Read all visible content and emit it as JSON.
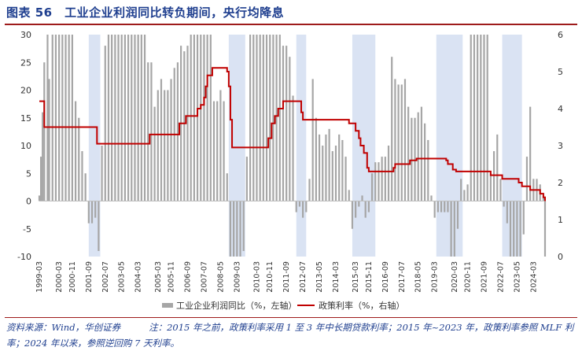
{
  "figure": {
    "title": "图表 56　工业企业利润同比转负期间，央行均降息",
    "source": "资料来源：Wind，华创证券",
    "note": "注：2015 年之前，政策利率采用 1 至 3 年中长期贷款利率；2015 年~2023 年，政策利率参照 MLF 利率；2024 年以来，参照逆回购 7 天利率。"
  },
  "colors": {
    "bar": "#a6a6a6",
    "line": "#c00000",
    "shade": "#dae3f3",
    "title": "#1f3f8f",
    "rule": "#9e1b1b"
  },
  "chart_data": {
    "type": "bar+line",
    "x_tick_labels": [
      "1999-03",
      "2000-03",
      "2000-11",
      "2001-09",
      "2002-07",
      "2003-05",
      "2004-03",
      "2005-03",
      "2005-11",
      "2006-09",
      "2007-07",
      "2008-05",
      "2009-03",
      "2010-03",
      "2010-11",
      "2011-09",
      "2012-07",
      "2013-05",
      "2014-03",
      "2015-03",
      "2015-11",
      "2016-09",
      "2017-07",
      "2018-05",
      "2019-03",
      "2020-03",
      "2020-11",
      "2021-09",
      "2022-07",
      "2023-05",
      "2024-03"
    ],
    "y_left": {
      "range": [
        -10,
        30
      ],
      "ticks": [
        -10,
        -5,
        0,
        5,
        10,
        15,
        20,
        25,
        30
      ]
    },
    "y_right": {
      "range": [
        0,
        6
      ],
      "ticks": [
        0,
        1,
        2,
        3,
        4,
        5,
        6
      ]
    },
    "shaded_periods": [
      {
        "start": "2001-09",
        "end": "2002-04"
      },
      {
        "start": "2008-10",
        "end": "2009-08"
      },
      {
        "start": "2012-03",
        "end": "2012-09"
      },
      {
        "start": "2015-01",
        "end": "2016-03"
      },
      {
        "start": "2019-04",
        "end": "2020-08"
      },
      {
        "start": "2022-08",
        "end": "2023-08"
      }
    ],
    "series": [
      {
        "name": "工业企业利润同比（%，左轴）",
        "type": "bar",
        "axis": "left",
        "points": [
          [
            "1999-03",
            1
          ],
          [
            "1999-04",
            8
          ],
          [
            "1999-05",
            16
          ],
          [
            "1999-06",
            25
          ],
          [
            "1999-08",
            30
          ],
          [
            "1999-09",
            22
          ],
          [
            "1999-11",
            30
          ],
          [
            "2000-01",
            30
          ],
          [
            "2000-03",
            30
          ],
          [
            "2000-05",
            30
          ],
          [
            "2000-07",
            30
          ],
          [
            "2000-09",
            30
          ],
          [
            "2000-11",
            30
          ],
          [
            "2001-01",
            18
          ],
          [
            "2001-03",
            15
          ],
          [
            "2001-05",
            9
          ],
          [
            "2001-07",
            5
          ],
          [
            "2001-09",
            -4
          ],
          [
            "2001-11",
            -4
          ],
          [
            "2002-01",
            -3
          ],
          [
            "2002-03",
            -9
          ],
          [
            "2002-05",
            10
          ],
          [
            "2002-07",
            28
          ],
          [
            "2002-09",
            30
          ],
          [
            "2002-11",
            30
          ],
          [
            "2003-01",
            30
          ],
          [
            "2003-03",
            30
          ],
          [
            "2003-05",
            30
          ],
          [
            "2003-07",
            30
          ],
          [
            "2003-09",
            30
          ],
          [
            "2003-11",
            30
          ],
          [
            "2004-01",
            30
          ],
          [
            "2004-03",
            30
          ],
          [
            "2004-05",
            30
          ],
          [
            "2004-07",
            30
          ],
          [
            "2004-09",
            25
          ],
          [
            "2004-11",
            25
          ],
          [
            "2005-01",
            17
          ],
          [
            "2005-03",
            20
          ],
          [
            "2005-05",
            22
          ],
          [
            "2005-07",
            20
          ],
          [
            "2005-09",
            20
          ],
          [
            "2005-11",
            22
          ],
          [
            "2006-01",
            24
          ],
          [
            "2006-03",
            25
          ],
          [
            "2006-05",
            28
          ],
          [
            "2006-07",
            27
          ],
          [
            "2006-09",
            28
          ],
          [
            "2006-11",
            30
          ],
          [
            "2007-01",
            30
          ],
          [
            "2007-03",
            30
          ],
          [
            "2007-05",
            30
          ],
          [
            "2007-07",
            30
          ],
          [
            "2007-09",
            30
          ],
          [
            "2007-11",
            30
          ],
          [
            "2008-01",
            18
          ],
          [
            "2008-03",
            18
          ],
          [
            "2008-05",
            20
          ],
          [
            "2008-07",
            18
          ],
          [
            "2008-09",
            5
          ],
          [
            "2008-11",
            -10
          ],
          [
            "2009-01",
            -10
          ],
          [
            "2009-03",
            -10
          ],
          [
            "2009-05",
            -10
          ],
          [
            "2009-07",
            -9
          ],
          [
            "2009-09",
            8
          ],
          [
            "2009-11",
            30
          ],
          [
            "2010-01",
            30
          ],
          [
            "2010-03",
            30
          ],
          [
            "2010-05",
            30
          ],
          [
            "2010-07",
            30
          ],
          [
            "2010-09",
            30
          ],
          [
            "2010-11",
            30
          ],
          [
            "2011-01",
            30
          ],
          [
            "2011-03",
            30
          ],
          [
            "2011-05",
            30
          ],
          [
            "2011-07",
            28
          ],
          [
            "2011-09",
            28
          ],
          [
            "2011-11",
            26
          ],
          [
            "2012-01",
            19
          ],
          [
            "2012-03",
            -2
          ],
          [
            "2012-05",
            -1
          ],
          [
            "2012-07",
            -3
          ],
          [
            "2012-09",
            -2
          ],
          [
            "2012-11",
            4
          ],
          [
            "2013-01",
            22
          ],
          [
            "2013-03",
            15
          ],
          [
            "2013-05",
            12
          ],
          [
            "2013-07",
            10
          ],
          [
            "2013-09",
            12
          ],
          [
            "2013-11",
            13
          ],
          [
            "2014-01",
            9
          ],
          [
            "2014-03",
            10
          ],
          [
            "2014-05",
            12
          ],
          [
            "2014-07",
            11
          ],
          [
            "2014-09",
            8
          ],
          [
            "2014-11",
            2
          ],
          [
            "2015-01",
            -5
          ],
          [
            "2015-03",
            -3
          ],
          [
            "2015-05",
            -1
          ],
          [
            "2015-07",
            1
          ],
          [
            "2015-09",
            -3
          ],
          [
            "2015-11",
            -2
          ],
          [
            "2016-01",
            5
          ],
          [
            "2016-03",
            7
          ],
          [
            "2016-05",
            7
          ],
          [
            "2016-07",
            8
          ],
          [
            "2016-09",
            8
          ],
          [
            "2016-11",
            10
          ],
          [
            "2017-01",
            26
          ],
          [
            "2017-03",
            22
          ],
          [
            "2017-05",
            21
          ],
          [
            "2017-07",
            21
          ],
          [
            "2017-09",
            22
          ],
          [
            "2017-11",
            17
          ],
          [
            "2018-01",
            15
          ],
          [
            "2018-03",
            15
          ],
          [
            "2018-05",
            16
          ],
          [
            "2018-07",
            17
          ],
          [
            "2018-09",
            14
          ],
          [
            "2018-11",
            11
          ],
          [
            "2019-01",
            1
          ],
          [
            "2019-03",
            -3
          ],
          [
            "2019-05",
            -2
          ],
          [
            "2019-07",
            -2
          ],
          [
            "2019-09",
            -2
          ],
          [
            "2019-11",
            -2
          ],
          [
            "2020-01",
            -10
          ],
          [
            "2020-03",
            -10
          ],
          [
            "2020-05",
            -5
          ],
          [
            "2020-07",
            4
          ],
          [
            "2020-09",
            2
          ],
          [
            "2020-11",
            3
          ],
          [
            "2021-01",
            30
          ],
          [
            "2021-03",
            30
          ],
          [
            "2021-05",
            30
          ],
          [
            "2021-07",
            30
          ],
          [
            "2021-09",
            30
          ],
          [
            "2021-11",
            30
          ],
          [
            "2022-01",
            5
          ],
          [
            "2022-03",
            9
          ],
          [
            "2022-05",
            12
          ],
          [
            "2022-07",
            4
          ],
          [
            "2022-09",
            -1
          ],
          [
            "2022-11",
            -4
          ],
          [
            "2023-01",
            -10
          ],
          [
            "2023-03",
            -10
          ],
          [
            "2023-05",
            -10
          ],
          [
            "2023-07",
            -10
          ],
          [
            "2023-09",
            -6
          ],
          [
            "2023-11",
            8
          ],
          [
            "2024-01",
            17
          ],
          [
            "2024-03",
            4
          ],
          [
            "2024-05",
            4
          ],
          [
            "2024-07",
            3
          ],
          [
            "2024-09",
            1
          ],
          [
            "2024-10",
            -10
          ]
        ]
      },
      {
        "name": "政策利率（%，右轴）",
        "type": "step-line",
        "axis": "right",
        "points": [
          [
            "1999-03",
            4.2
          ],
          [
            "1999-06",
            3.5
          ],
          [
            "2002-02",
            3.05
          ],
          [
            "2004-10",
            3.3
          ],
          [
            "2006-04",
            3.6
          ],
          [
            "2006-08",
            3.8
          ],
          [
            "2007-03",
            4.0
          ],
          [
            "2007-05",
            4.1
          ],
          [
            "2007-07",
            4.3
          ],
          [
            "2007-08",
            4.6
          ],
          [
            "2007-09",
            4.9
          ],
          [
            "2007-12",
            5.1
          ],
          [
            "2008-09",
            5.0
          ],
          [
            "2008-10",
            4.6
          ],
          [
            "2008-11",
            3.7
          ],
          [
            "2008-12",
            2.95
          ],
          [
            "2010-10",
            3.2
          ],
          [
            "2010-12",
            3.6
          ],
          [
            "2011-02",
            3.8
          ],
          [
            "2011-04",
            4.0
          ],
          [
            "2011-07",
            4.2
          ],
          [
            "2012-06",
            3.9
          ],
          [
            "2012-07",
            3.7
          ],
          [
            "2014-11",
            3.6
          ],
          [
            "2015-03",
            3.4
          ],
          [
            "2015-05",
            3.2
          ],
          [
            "2015-06",
            3.0
          ],
          [
            "2015-08",
            2.8
          ],
          [
            "2015-10",
            2.4
          ],
          [
            "2015-11",
            2.3
          ],
          [
            "2017-02",
            2.4
          ],
          [
            "2017-03",
            2.5
          ],
          [
            "2017-12",
            2.6
          ],
          [
            "2018-04",
            2.65
          ],
          [
            "2019-10",
            2.6
          ],
          [
            "2019-11",
            2.5
          ],
          [
            "2020-02",
            2.35
          ],
          [
            "2020-04",
            2.3
          ],
          [
            "2022-01",
            2.2
          ],
          [
            "2022-08",
            2.1
          ],
          [
            "2023-06",
            2.0
          ],
          [
            "2023-08",
            1.9
          ],
          [
            "2024-01",
            1.8
          ],
          [
            "2024-07",
            1.7
          ],
          [
            "2024-09",
            1.6
          ],
          [
            "2024-10",
            1.5
          ]
        ]
      }
    ],
    "legend": {
      "position": "bottom",
      "items": [
        "工业企业利润同比（%，左轴）",
        "政策利率（%，右轴）"
      ]
    }
  }
}
